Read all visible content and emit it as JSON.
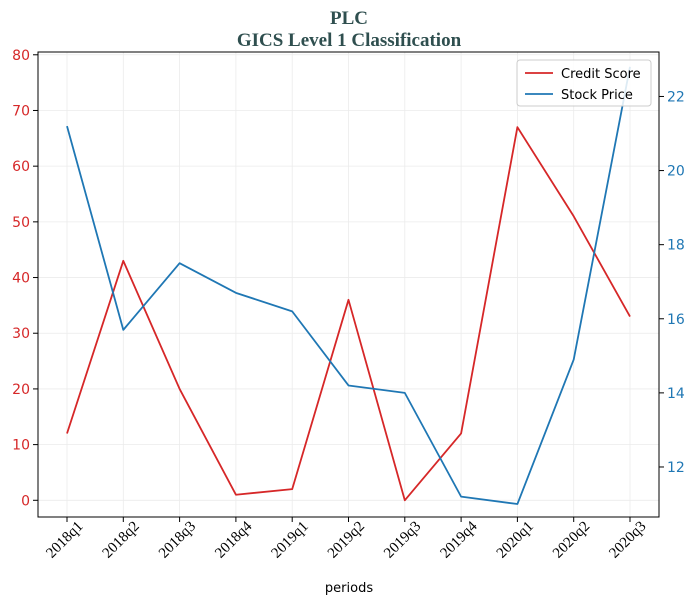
{
  "chart_data": {
    "type": "line",
    "title": "PLC",
    "subtitle": "GICS Level 1 Classification",
    "xlabel": "periods",
    "categories": [
      "2018q1",
      "2018q2",
      "2018q3",
      "2018q4",
      "2019q1",
      "2019q2",
      "2019q3",
      "2019q4",
      "2020q1",
      "2020q2",
      "2020q3"
    ],
    "series": [
      {
        "name": "Credit Score",
        "axis": "left",
        "color": "#d62728",
        "values": [
          12,
          43,
          20,
          1,
          2,
          36,
          0,
          12,
          67,
          51,
          33
        ]
      },
      {
        "name": "Stock Price",
        "axis": "right",
        "color": "#1f77b4",
        "values": [
          21.2,
          15.7,
          17.5,
          16.7,
          16.2,
          14.2,
          14.0,
          11.2,
          11.0,
          14.9,
          22.8
        ]
      }
    ],
    "ylim_left": [
      -3,
      80.5
    ],
    "yticks_left": [
      0,
      10,
      20,
      30,
      40,
      50,
      60,
      70,
      80
    ],
    "ylim_right": [
      10.65,
      23.2
    ],
    "yticks_right": [
      12,
      14,
      16,
      18,
      20,
      22
    ],
    "grid": true,
    "legend_position": "top-right"
  }
}
